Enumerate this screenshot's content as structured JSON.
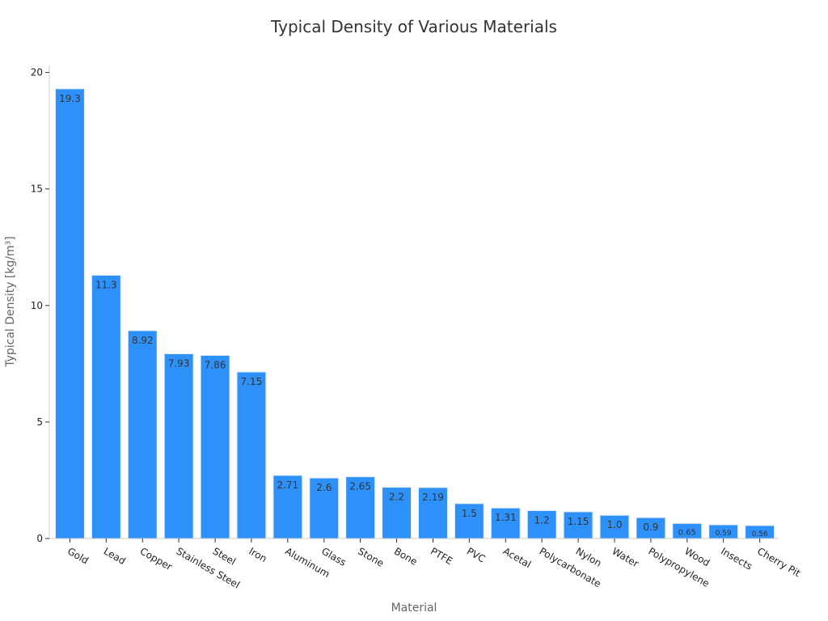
{
  "chart_data": {
    "type": "bar",
    "title": "Typical Density of Various Materials",
    "xlabel": "Material",
    "ylabel": "Typical Density [kg/m³]",
    "categories": [
      "Gold",
      "Lead",
      "Copper",
      "Stainless Steel",
      "Steel",
      "Iron",
      "Aluminum",
      "Glass",
      "Stone",
      "Bone",
      "PTFE",
      "PVC",
      "Acetal",
      "Polycarbonate",
      "Nylon",
      "Water",
      "Polypropylene",
      "Wood",
      "Insects",
      "Cherry Pit"
    ],
    "values": [
      19.3,
      11.3,
      8.92,
      7.93,
      7.86,
      7.15,
      2.71,
      2.6,
      2.65,
      2.2,
      2.19,
      1.5,
      1.31,
      1.2,
      1.15,
      1.0,
      0.9,
      0.65,
      0.59,
      0.56
    ],
    "value_labels": [
      "19.3",
      "11.3",
      "8.92",
      "7.93",
      "7.86",
      "7.15",
      "2.71",
      "2.6",
      "2.65",
      "2.2",
      "2.19",
      "1.5",
      "1.31",
      "1.2",
      "1.15",
      "1.0",
      "0.9",
      "0.65",
      "0.59",
      "0.56"
    ],
    "yticks": [
      0,
      5,
      10,
      15,
      20
    ],
    "ylim": [
      0,
      20.3
    ],
    "grid": false,
    "legend": "none",
    "bar_color": "#2e91fa",
    "bar_edge_color": "#e6eef8"
  }
}
